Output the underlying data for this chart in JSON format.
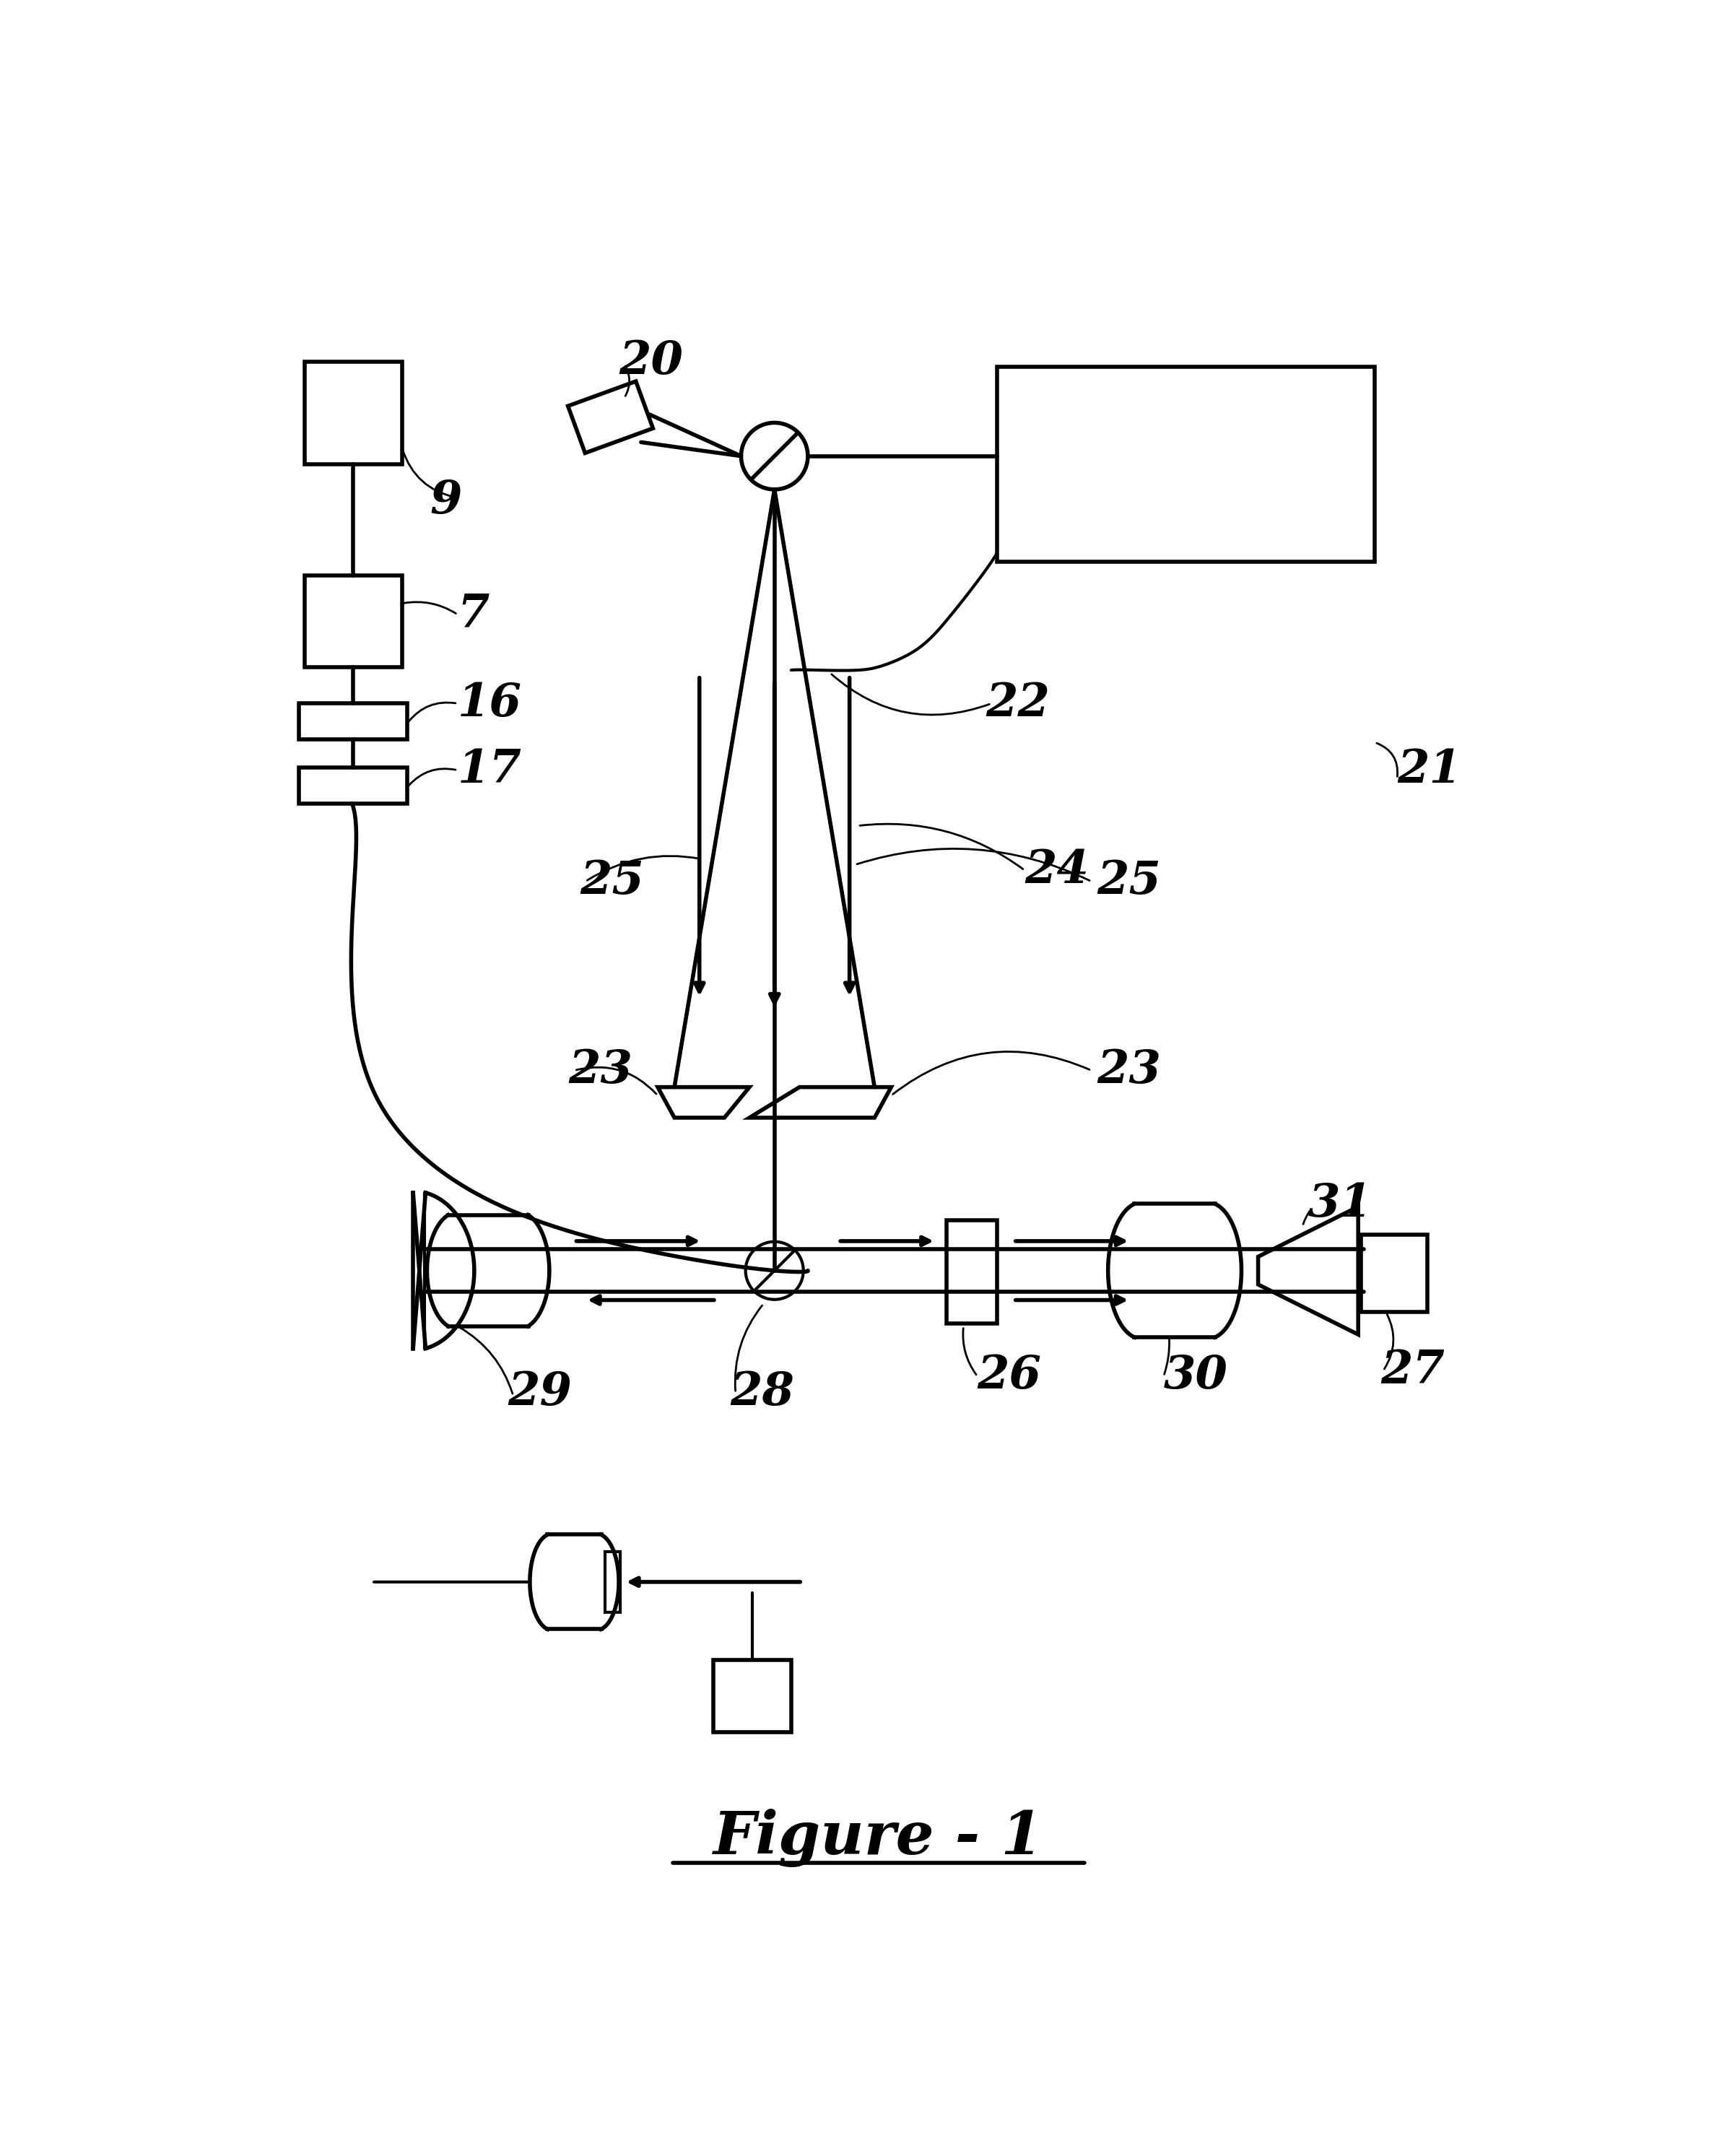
{
  "bg_color": "#ffffff",
  "line_color": "#000000",
  "fig_width": 23.74,
  "fig_height": 29.86,
  "title": "Figure - 1",
  "lw": 3.0,
  "lw_thick": 4.0
}
